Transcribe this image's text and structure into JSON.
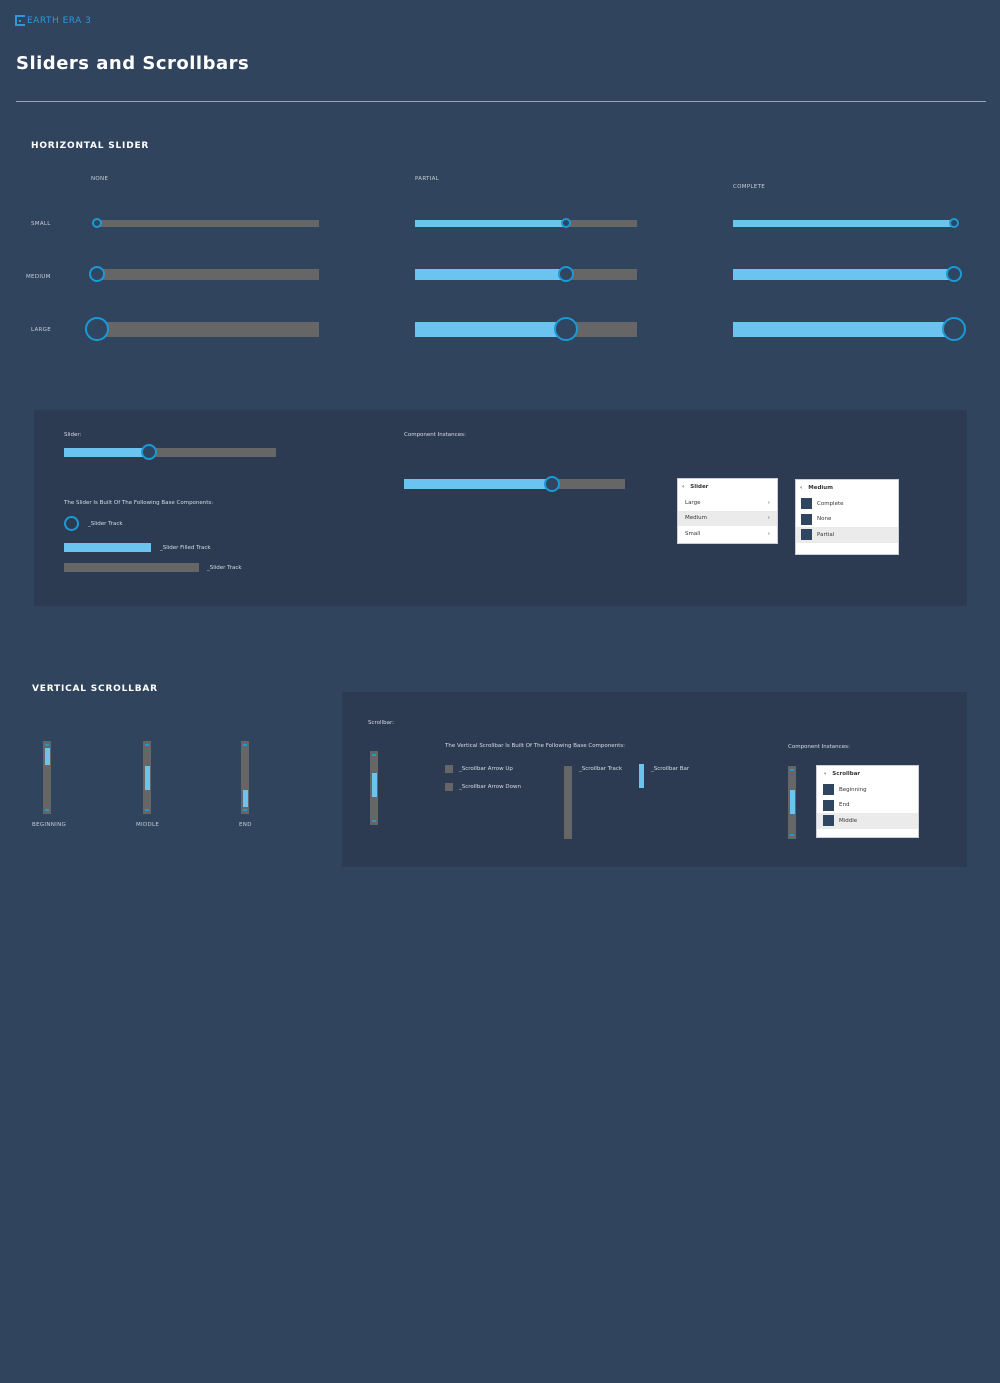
{
  "header": {
    "logo": "EARTH ERA 3",
    "title": "Sliders and Scrollbars"
  },
  "colors": {
    "background": "#31445d",
    "panel": "#2c3b52",
    "track": "#666666",
    "fill": "#6ac4ef",
    "thumb_ring": "#1a9ad6"
  },
  "horizontal": {
    "heading": "HORIZONTAL SLIDER",
    "columns": [
      {
        "label": "NONE",
        "value": 0
      },
      {
        "label": "PARTIAL",
        "value": 0.68
      },
      {
        "label": "COMPLETE",
        "value": 1
      }
    ],
    "rows": [
      "SMALL",
      "MEDIUM",
      "LARGE"
    ]
  },
  "slider_panel": {
    "slider_label": "Slider:",
    "slider_value": 0.4,
    "components_heading": "The Slider Is Built Of The Following Base Components:",
    "components": [
      "_Slider Track",
      "_Slider Filled Track",
      "_Slider Track"
    ],
    "instances_label": "Component Instances:",
    "instance_value": 0.67,
    "menu1": {
      "title": "Slider",
      "items": [
        "Large",
        "Medium",
        "Small"
      ],
      "selected": 1
    },
    "menu2": {
      "title": "Medium",
      "items": [
        "Complete",
        "None",
        "Partial"
      ],
      "selected": 2
    }
  },
  "vertical": {
    "heading": "VERTICAL SCROLLBAR",
    "items": [
      {
        "label": "BEGINNING",
        "position": 0
      },
      {
        "label": "MIDDLE",
        "position": 0.5
      },
      {
        "label": "END",
        "position": 1
      }
    ]
  },
  "scroll_panel": {
    "scrollbar_label": "Scrollbar:",
    "components_heading": "The Vertical Scrollbar Is Built Of The Following Base Components:",
    "components": [
      "_Scrollbar Arrow Up",
      "_Scrollbar Arrow Down",
      "_Scrollbar Track",
      "_Scrollbar Bar"
    ],
    "instances_label": "Component Instances:",
    "menu": {
      "title": "Scrollbar",
      "items": [
        "Beginning",
        "End",
        "Middle"
      ],
      "selected": 2
    }
  }
}
